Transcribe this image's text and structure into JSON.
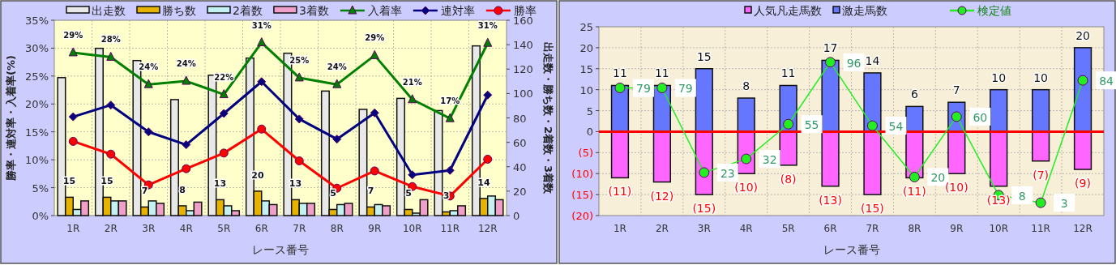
{
  "chart_data": [
    {
      "type": "bar",
      "categories": [
        "1R",
        "2R",
        "3R",
        "4R",
        "5R",
        "6R",
        "7R",
        "8R",
        "9R",
        "10R",
        "11R",
        "12R"
      ],
      "xlabel": "レース番号",
      "ylabel": "勝率・連対率・入着率(%)",
      "y2label": "出走数・勝ち数・2着数・3着数",
      "ylim": [
        0,
        35
      ],
      "yticks": [
        {
          "value": 0,
          "label": "0%"
        },
        {
          "value": 5,
          "label": "5%"
        },
        {
          "value": 10,
          "label": "10%"
        },
        {
          "value": 15,
          "label": "15%"
        },
        {
          "value": 20,
          "label": "20%"
        },
        {
          "value": 25,
          "label": "25%"
        },
        {
          "value": 30,
          "label": "30%"
        },
        {
          "value": 35,
          "label": "35%"
        }
      ],
      "y2lim": [
        0,
        160
      ],
      "y2ticks": [
        0,
        20,
        40,
        60,
        80,
        100,
        120,
        140,
        160
      ],
      "grid": true,
      "legend": "top",
      "series": [
        {
          "name": "出走数",
          "axis": "y2",
          "color": "#e8e8e8",
          "values": [
            113,
            137,
            127,
            95,
            115,
            129,
            133,
            102,
            87,
            96,
            86,
            139
          ]
        },
        {
          "name": "勝ち数",
          "axis": "y2",
          "color": "#e6b400",
          "values": [
            15,
            15,
            7,
            8,
            13,
            20,
            13,
            5,
            7,
            5,
            3,
            14
          ],
          "value_labels": [
            "15",
            "15",
            "7",
            "8",
            "13",
            "20",
            "13",
            "5",
            "7",
            "5",
            "3",
            "14"
          ]
        },
        {
          "name": "2着数",
          "axis": "y2",
          "color": "#c4f2f2",
          "values": [
            5,
            12,
            12,
            4,
            8,
            12,
            10,
            9,
            9,
            2,
            4,
            16
          ]
        },
        {
          "name": "3着数",
          "axis": "y2",
          "color": "#f0a0c8",
          "values": [
            12,
            12,
            10,
            11,
            4,
            9,
            10,
            10,
            8,
            13,
            8,
            13
          ]
        },
        {
          "name": "入着率",
          "type": "line",
          "marker": "triangle",
          "color": "#008000",
          "values": [
            29.2,
            28.4,
            23.5,
            24.1,
            21.7,
            31.0,
            24.7,
            23.5,
            28.7,
            20.8,
            17.4,
            30.9
          ],
          "value_labels": [
            "29%",
            "28%",
            "24%",
            "24%",
            "22%",
            "31%",
            "25%",
            "24%",
            "29%",
            "21%",
            "17%",
            "31%"
          ]
        },
        {
          "name": "連対率",
          "type": "line",
          "marker": "diamond",
          "color": "#000080",
          "values": [
            17.7,
            19.8,
            15.0,
            12.7,
            18.3,
            24.0,
            17.3,
            13.7,
            18.4,
            7.3,
            8.1,
            21.6
          ]
        },
        {
          "name": "勝率",
          "type": "line",
          "marker": "circle",
          "color": "#ff0000",
          "values": [
            13.3,
            11.0,
            5.5,
            8.4,
            11.2,
            15.5,
            9.8,
            4.9,
            8.0,
            5.2,
            3.5,
            10.1
          ]
        }
      ]
    },
    {
      "type": "bar",
      "stacked": true,
      "categories": [
        "1R",
        "2R",
        "3R",
        "4R",
        "5R",
        "6R",
        "7R",
        "8R",
        "9R",
        "10R",
        "11R",
        "12R"
      ],
      "xlabel": "レース番号",
      "ylim": [
        -20,
        25
      ],
      "yticks": [
        {
          "value": -20,
          "label": "(20)"
        },
        {
          "value": -15,
          "label": "(15)"
        },
        {
          "value": -10,
          "label": "(10)"
        },
        {
          "value": -5,
          "label": "(5)"
        },
        0,
        5,
        10,
        15,
        20,
        25
      ],
      "y2lim": [
        -5.5,
        119.5
      ],
      "tick_labels": "xy",
      "grid": true,
      "legend": "top",
      "ref_lines": [
        {
          "axis": "y",
          "value": 0,
          "color": "#ff0000"
        }
      ],
      "series": [
        {
          "name": "人気凡走馬数",
          "color": "#ff66ff",
          "values": [
            -11,
            -12,
            -15,
            -10,
            -8,
            -13,
            -15,
            -11,
            -10,
            -13,
            -7,
            -9
          ],
          "value_labels": [
            "(11)",
            "(12)",
            "(15)",
            "(10)",
            "(8)",
            "(13)",
            "(15)",
            "(11)",
            "(10)",
            "(13)",
            "(7)",
            "(9)"
          ]
        },
        {
          "name": "激走馬数",
          "color": "#6677ff",
          "values": [
            11,
            11,
            15,
            8,
            11,
            17,
            14,
            6,
            7,
            10,
            10,
            20
          ],
          "value_labels": [
            "11",
            "11",
            "15",
            "8",
            "11",
            "17",
            "14",
            "6",
            "7",
            "10",
            "10",
            "20"
          ]
        },
        {
          "name": "検定値",
          "type": "line",
          "axis": "y2",
          "marker": "circle",
          "color": "#22ee22",
          "values": [
            79,
            79,
            23,
            32,
            55,
            96,
            54,
            20,
            60,
            8,
            3,
            84
          ],
          "value_labels": [
            "79",
            "79",
            "23",
            "32",
            "55",
            "96",
            "54",
            "20",
            "60",
            "8",
            "3",
            "84"
          ]
        }
      ]
    }
  ]
}
